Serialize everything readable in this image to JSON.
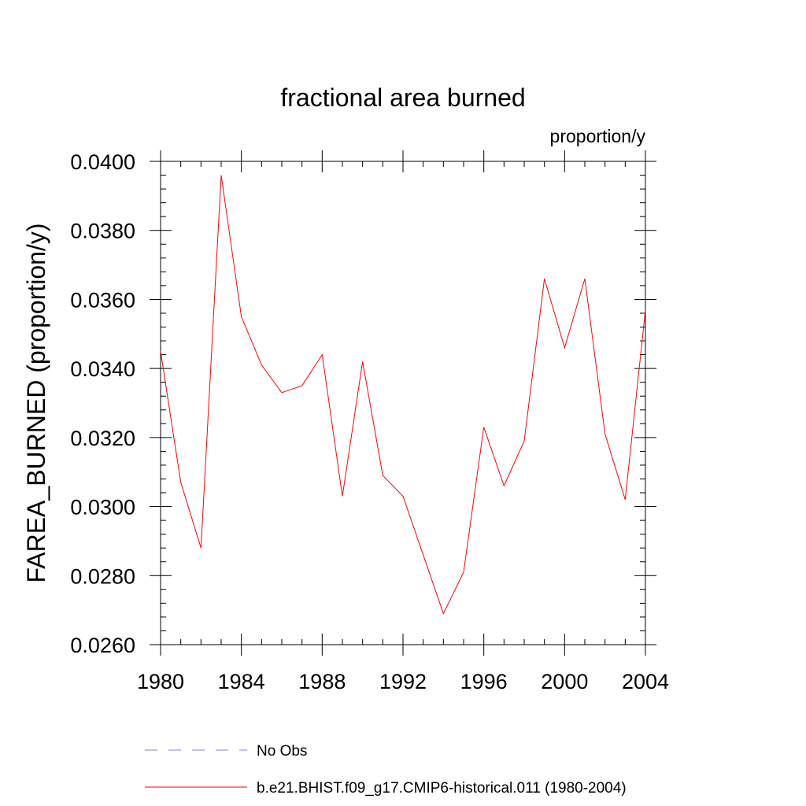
{
  "chart_data": {
    "type": "line",
    "title": "fractional area burned",
    "units_label": "proportion/y",
    "ylabel": "FAREA_BURNED  (proportion/y)",
    "xlabel": "",
    "xlim": [
      1980,
      2004
    ],
    "ylim": [
      0.026,
      0.04
    ],
    "x_ticks": [
      1980,
      1984,
      1988,
      1992,
      1996,
      2000,
      2004
    ],
    "x_tick_labels": [
      "1980",
      "1984",
      "1988",
      "1992",
      "1996",
      "2000",
      "2004"
    ],
    "y_ticks": [
      0.026,
      0.028,
      0.03,
      0.032,
      0.034,
      0.036,
      0.038,
      0.04
    ],
    "y_tick_labels": [
      "0.0260",
      "0.0280",
      "0.0300",
      "0.0320",
      "0.0340",
      "0.0360",
      "0.0380",
      "0.0400"
    ],
    "grid": false,
    "legend_position": "bottom",
    "x": [
      1980,
      1981,
      1982,
      1983,
      1984,
      1985,
      1986,
      1987,
      1988,
      1989,
      1990,
      1991,
      1992,
      1993,
      1994,
      1995,
      1996,
      1997,
      1998,
      1999,
      2000,
      2001,
      2002,
      2003,
      2004
    ],
    "series": [
      {
        "name": "b.e21.BHIST.f09_g17.CMIP6-historical.011 (1980-2004)",
        "color": "#ff0000",
        "style": "solid",
        "values": [
          0.0345,
          0.0307,
          0.0288,
          0.0396,
          0.0355,
          0.0341,
          0.0333,
          0.0335,
          0.0344,
          0.0303,
          0.0342,
          0.0309,
          0.0303,
          0.0286,
          0.0269,
          0.0281,
          0.0323,
          0.0306,
          0.0319,
          0.0366,
          0.0346,
          0.0366,
          0.0321,
          0.0302,
          0.0357
        ]
      }
    ],
    "legend": [
      {
        "label": "No Obs",
        "color": "#8080c0",
        "style": "dashed"
      },
      {
        "label": "b.e21.BHIST.f09_g17.CMIP6-historical.011 (1980-2004)",
        "color": "#ff0000",
        "style": "solid"
      }
    ]
  }
}
